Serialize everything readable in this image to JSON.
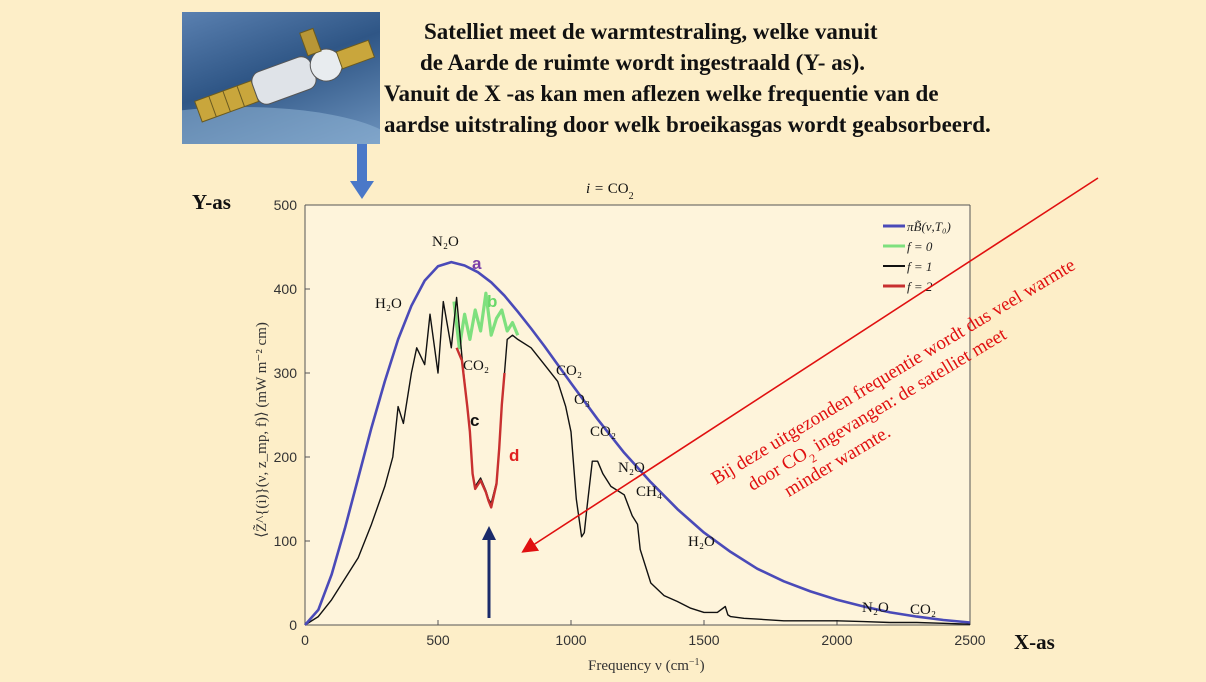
{
  "headline": {
    "line1": "Satelliet meet de warmtestraling, welke vanuit",
    "line2": "de Aarde de ruimte wordt ingestraald (Y- as).",
    "line3": "Vanuit de X -as kan men aflezen welke frequentie van de",
    "line4": "aardse uitstraling door welk broeikasgas wordt geabsorbeerd."
  },
  "captions": {
    "y_axis": "Y-as",
    "x_axis": "X-as"
  },
  "red_note": {
    "line1": "Bij deze uitgezonden frequentie wordt dus veel warmte",
    "line2_a": "door CO",
    "line2_sub": "2",
    "line2_b": " ingevangen: de satelliet meet",
    "line3": "minder warmte."
  },
  "colors": {
    "background": "#fdeec8",
    "planck": "#4a4ab8",
    "f0": "#7ee07e",
    "f1": "#111111",
    "f2": "#c83030",
    "red_arrow": "#e01010",
    "down_arrow": "#4a78c8",
    "up_arrow": "#1a2a6a"
  },
  "chart_data": {
    "type": "line",
    "title_prefix": "i = ",
    "title_main": "CO",
    "title_sub": "2",
    "xlabel": "Frequency ν (cm",
    "xlabel_sup": "−1",
    "xlabel_end": ")",
    "ylabel": "⟨Z̃^{(i)}(ν, z_mp, f)⟩ (mW m⁻² cm)",
    "xlim": [
      0,
      2500
    ],
    "ylim": [
      0,
      500
    ],
    "x_ticks": [
      0,
      500,
      1000,
      1500,
      2000,
      2500
    ],
    "y_ticks": [
      0,
      100,
      200,
      300,
      400,
      500
    ],
    "grid": false,
    "legend_position": "top-right",
    "series": [
      {
        "name": "πB̃(ν,T₀)",
        "color": "#4a4ab8",
        "x": [
          0,
          50,
          100,
          150,
          200,
          250,
          300,
          350,
          400,
          450,
          500,
          550,
          600,
          650,
          700,
          750,
          800,
          850,
          900,
          950,
          1000,
          1100,
          1200,
          1300,
          1400,
          1500,
          1600,
          1700,
          1800,
          1900,
          2000,
          2100,
          2200,
          2300,
          2400,
          2500
        ],
        "y": [
          0,
          18,
          60,
          115,
          175,
          235,
          290,
          340,
          380,
          410,
          427,
          432,
          428,
          420,
          408,
          392,
          373,
          353,
          332,
          310,
          288,
          245,
          205,
          170,
          138,
          110,
          87,
          67,
          52,
          40,
          30,
          22,
          15,
          10,
          6,
          3
        ]
      },
      {
        "name": "f = 0",
        "color": "#7ee07e",
        "x": [
          560,
          580,
          600,
          620,
          640,
          660,
          680,
          700,
          720,
          740,
          760,
          780,
          800
        ],
        "y": [
          385,
          330,
          370,
          340,
          375,
          350,
          395,
          345,
          365,
          375,
          350,
          360,
          345
        ]
      },
      {
        "name": "f = 1",
        "color": "#111111",
        "x": [
          0,
          50,
          100,
          150,
          200,
          250,
          300,
          330,
          350,
          370,
          400,
          420,
          450,
          470,
          500,
          520,
          550,
          570,
          590,
          610,
          620,
          630,
          640,
          660,
          680,
          690,
          700,
          720,
          730,
          740,
          750,
          760,
          780,
          800,
          850,
          900,
          950,
          980,
          1000,
          1020,
          1040,
          1050,
          1060,
          1080,
          1100,
          1120,
          1150,
          1200,
          1230,
          1250,
          1260,
          1300,
          1350,
          1400,
          1450,
          1500,
          1550,
          1580,
          1590,
          1600,
          1650,
          1700,
          1800,
          1900,
          2000,
          2100,
          2200,
          2300,
          2400,
          2500
        ],
        "y": [
          0,
          10,
          30,
          55,
          80,
          120,
          165,
          200,
          260,
          240,
          300,
          330,
          310,
          370,
          300,
          385,
          330,
          390,
          320,
          260,
          230,
          180,
          165,
          175,
          160,
          150,
          145,
          170,
          210,
          260,
          300,
          340,
          345,
          340,
          330,
          310,
          290,
          260,
          230,
          150,
          105,
          110,
          140,
          195,
          195,
          180,
          165,
          155,
          130,
          120,
          90,
          50,
          35,
          28,
          20,
          15,
          15,
          22,
          12,
          10,
          8,
          7,
          5,
          5,
          5,
          4,
          3,
          3,
          2,
          1
        ]
      },
      {
        "name": "f = 2",
        "color": "#c83030",
        "x": [
          570,
          590,
          610,
          620,
          630,
          640,
          660,
          680,
          690,
          700,
          720,
          730,
          740,
          750
        ],
        "y": [
          330,
          315,
          260,
          230,
          180,
          162,
          172,
          158,
          148,
          140,
          168,
          210,
          262,
          300
        ]
      }
    ],
    "annotations": {
      "n2o_peak": "N₂O",
      "h2o_left": "H₂O",
      "co2_band": "CO₂",
      "co2_mid": "CO₂",
      "o3": "O₃",
      "co2_1000": "CO₂",
      "n2o_1200": "N₂O",
      "ch4": "CH₄",
      "h2o_right": "H₂O",
      "n2o_2100": "N₂O",
      "co2_2300": "CO₂"
    },
    "markers": {
      "a": "a",
      "b": "b",
      "c": "c",
      "d": "d"
    }
  }
}
